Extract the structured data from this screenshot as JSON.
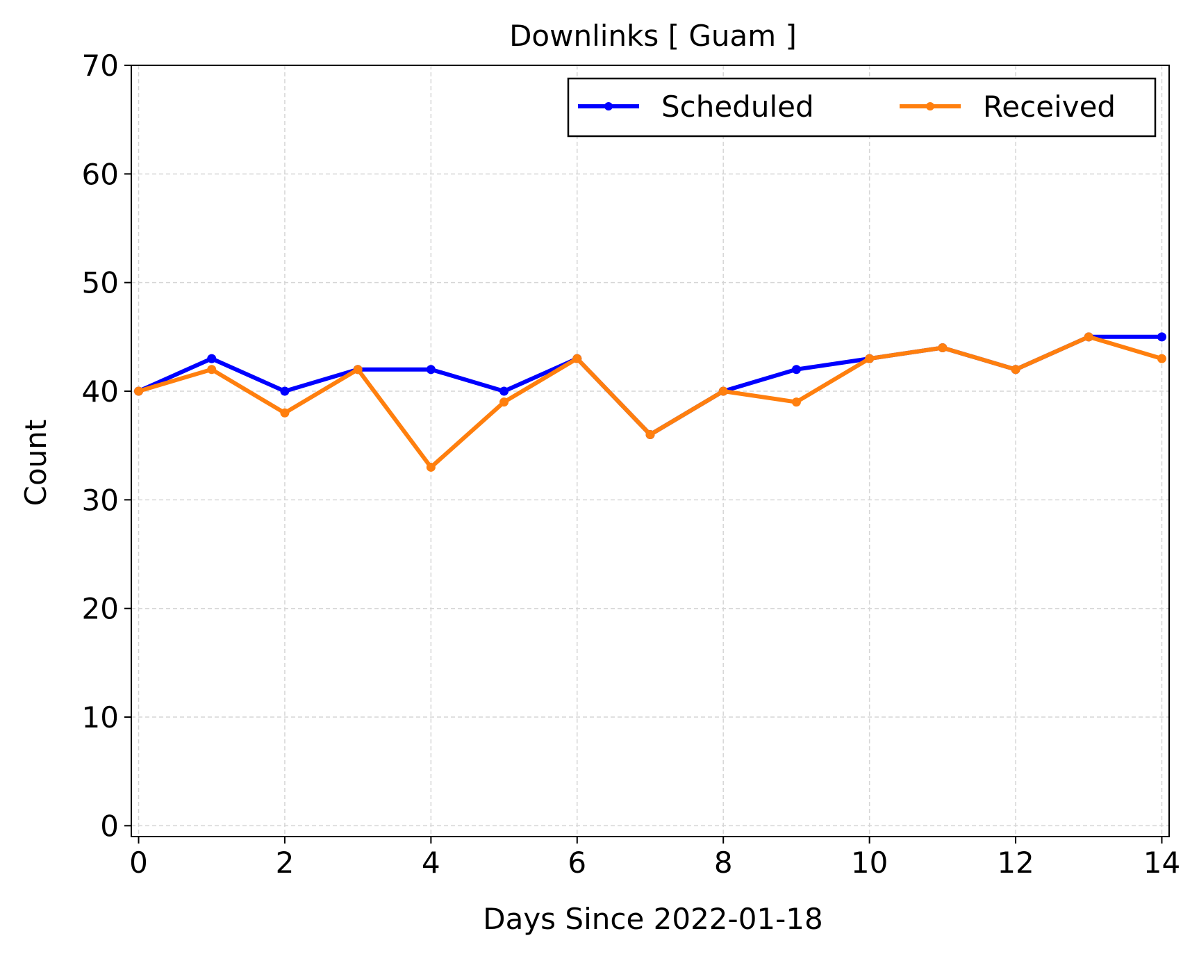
{
  "chart_data": {
    "type": "line",
    "title": "Downlinks [ Guam ]",
    "xlabel": "Days Since 2022-01-18",
    "ylabel": "Count",
    "xlim": [
      -0.1,
      14.1
    ],
    "ylim": [
      -1,
      70
    ],
    "x_ticks": [
      0,
      2,
      4,
      6,
      8,
      10,
      12,
      14
    ],
    "y_ticks": [
      0,
      10,
      20,
      30,
      40,
      50,
      60,
      70
    ],
    "grid": true,
    "legend_position": "top-right",
    "x": [
      0,
      1,
      2,
      3,
      4,
      5,
      6,
      7,
      8,
      9,
      10,
      11,
      12,
      13,
      14
    ],
    "series": [
      {
        "name": "Scheduled",
        "color": "#0000ff",
        "marker": "dot",
        "values": [
          40,
          43,
          40,
          42,
          42,
          40,
          43,
          36,
          40,
          42,
          43,
          44,
          42,
          45,
          45
        ]
      },
      {
        "name": "Received",
        "color": "#ff7f0e",
        "marker": "dot",
        "values": [
          40,
          42,
          38,
          42,
          33,
          39,
          43,
          36,
          40,
          39,
          43,
          44,
          42,
          45,
          43
        ]
      }
    ]
  }
}
